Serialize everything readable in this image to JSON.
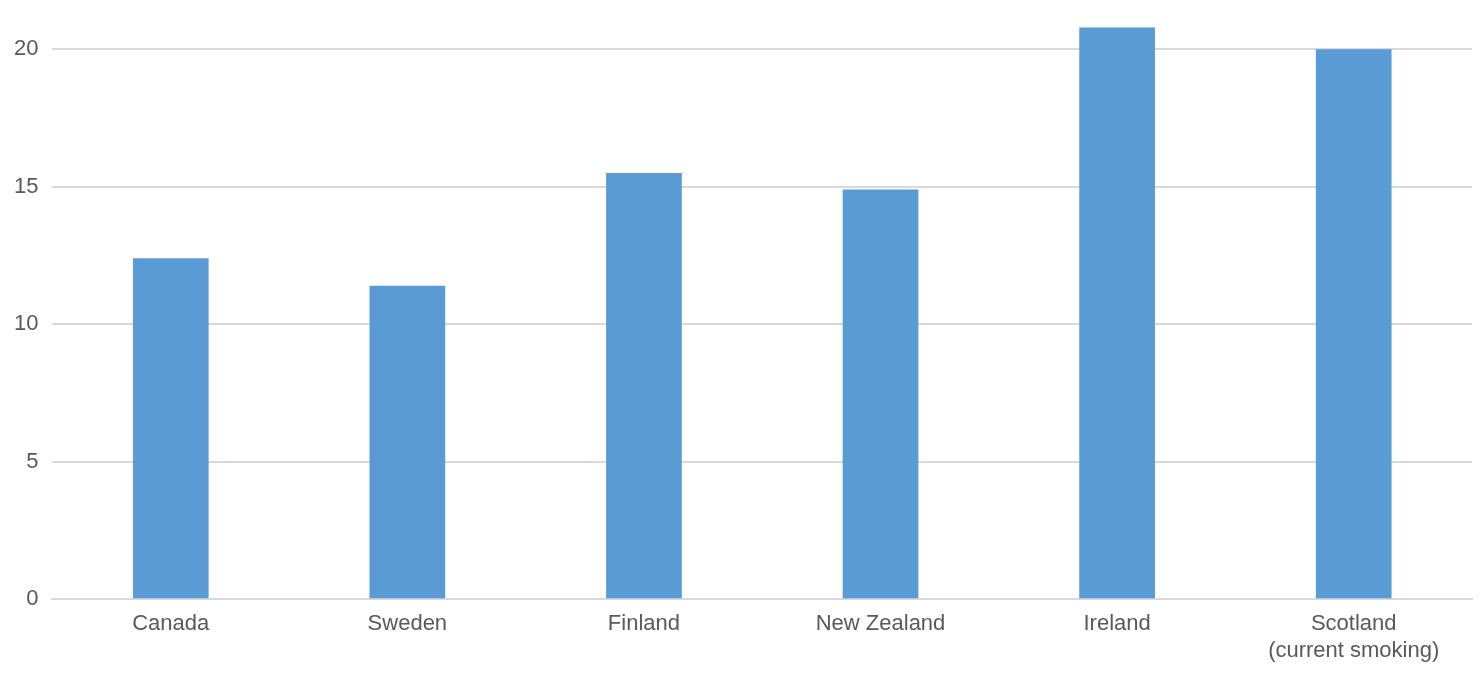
{
  "chart_data": {
    "type": "bar",
    "categories": [
      "Canada",
      "Sweden",
      "Finland",
      "New Zealand",
      "Ireland",
      "Scotland (current smoking)"
    ],
    "values": [
      12.4,
      11.4,
      15.5,
      14.9,
      20.8,
      20.0
    ],
    "color": "#5b9bd5",
    "ylim": [
      0,
      20.8
    ],
    "yticks": [
      0,
      5,
      10,
      15,
      20
    ],
    "grid": "y"
  }
}
